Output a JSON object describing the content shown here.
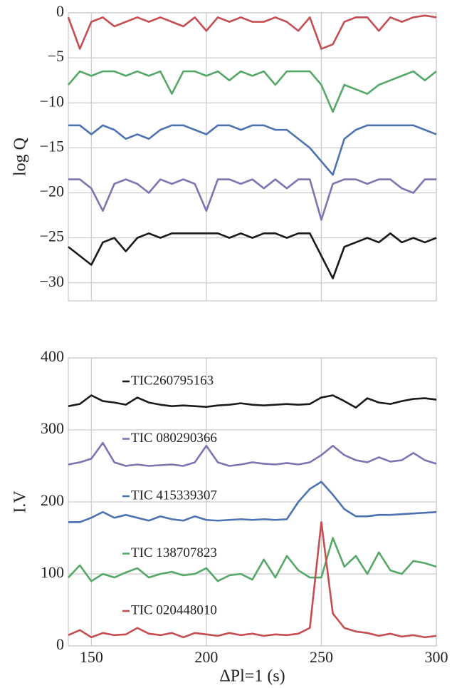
{
  "chart_data": [
    {
      "type": "line",
      "y_label": "log Q",
      "x": [
        140,
        145,
        150,
        155,
        160,
        165,
        170,
        175,
        180,
        185,
        190,
        195,
        200,
        205,
        210,
        215,
        220,
        225,
        230,
        235,
        240,
        245,
        250,
        255,
        260,
        265,
        270,
        275,
        280,
        285,
        290,
        295,
        300
      ],
      "xlim": [
        140,
        300
      ],
      "xticks": [
        150,
        200,
        250,
        300
      ],
      "ylim": [
        -32,
        0
      ],
      "yticks": [
        0,
        {
          "value": -5,
          "label": "−5"
        },
        {
          "value": -10,
          "label": "−10"
        },
        {
          "value": -15,
          "label": "−15"
        },
        {
          "value": -20,
          "label": "−20"
        },
        {
          "value": -25,
          "label": "−25"
        },
        {
          "value": -30,
          "label": "−30"
        }
      ],
      "grid": true,
      "series": [
        {
          "color": "#c44e52",
          "values": [
            -0.5,
            -4,
            -1,
            -0.5,
            -1.5,
            -1,
            -0.5,
            -1,
            -0.5,
            -1,
            -1.5,
            -0.5,
            -2,
            -0.5,
            -1,
            -0.5,
            -1,
            -1,
            -0.5,
            -1,
            -2,
            -0.5,
            -4,
            -3.5,
            -1,
            -0.5,
            -0.5,
            -2,
            -0.5,
            -1,
            -0.5,
            -0.3,
            -0.5
          ]
        },
        {
          "color": "#55a868",
          "values": [
            -8,
            -6.5,
            -7,
            -6.5,
            -6.5,
            -7,
            -6.5,
            -7,
            -6.5,
            -9,
            -6.5,
            -6.5,
            -7,
            -6.5,
            -7.5,
            -6.5,
            -7,
            -6.5,
            -8,
            -6.5,
            -6.5,
            -6.5,
            -8,
            -11,
            -8,
            -8.5,
            -9,
            -8,
            -7.5,
            -7,
            -6.5,
            -7.5,
            -6.5
          ]
        },
        {
          "color": "#4c72b0",
          "values": [
            -12.5,
            -12.5,
            -13.5,
            -12.5,
            -13,
            -14,
            -13.5,
            -14,
            -13,
            -12.5,
            -12.5,
            -13,
            -13.5,
            -12.5,
            -12.5,
            -13,
            -12.5,
            -12.5,
            -13,
            -13,
            -14,
            -15,
            -16.5,
            -18,
            -14,
            -13,
            -12.5,
            -12.5,
            -12.5,
            -12.5,
            -12.5,
            -13,
            -13.5
          ]
        },
        {
          "color": "#8172b2",
          "values": [
            -18.5,
            -18.5,
            -19.5,
            -22,
            -19,
            -18.5,
            -19,
            -20,
            -18.5,
            -19,
            -18.5,
            -19,
            -22,
            -18.5,
            -18.5,
            -19,
            -18.5,
            -19.5,
            -18.5,
            -19.5,
            -18.5,
            -18.5,
            -23,
            -19,
            -18.5,
            -18.5,
            -19,
            -18.5,
            -18.5,
            -19.5,
            -20,
            -18.5,
            -18.5
          ]
        },
        {
          "color": "#1a1a1a",
          "values": [
            -26,
            -27,
            -28,
            -25.5,
            -25,
            -26.5,
            -25,
            -24.5,
            -25,
            -24.5,
            -24.5,
            -24.5,
            -24.5,
            -24.5,
            -25,
            -24.5,
            -25,
            -24.5,
            -24.5,
            -25,
            -24.5,
            -24.5,
            -27,
            -29.5,
            -26,
            -25.5,
            -25,
            -25.5,
            -24.5,
            -25.5,
            -25,
            -25.5,
            -25
          ]
        }
      ]
    },
    {
      "type": "line",
      "y_label": "I.V",
      "x_label": "ΔPl=1 (s)",
      "x": [
        140,
        145,
        150,
        155,
        160,
        165,
        170,
        175,
        180,
        185,
        190,
        195,
        200,
        205,
        210,
        215,
        220,
        225,
        230,
        235,
        240,
        245,
        250,
        255,
        260,
        265,
        270,
        275,
        280,
        285,
        290,
        295,
        300
      ],
      "xlim": [
        140,
        300
      ],
      "xticks": [
        150,
        200,
        250,
        300
      ],
      "ylim": [
        0,
        400
      ],
      "yticks": [
        0,
        100,
        200,
        300,
        400
      ],
      "grid": true,
      "series": [
        {
          "name": "TIC260795163",
          "color": "#1a1a1a",
          "values": [
            333,
            336,
            348,
            340,
            338,
            335,
            345,
            338,
            335,
            333,
            334,
            333,
            332,
            334,
            335,
            337,
            335,
            334,
            335,
            336,
            335,
            336,
            345,
            348,
            340,
            331,
            344,
            338,
            336,
            340,
            343,
            344,
            342
          ]
        },
        {
          "name": "TIC 080290366",
          "color": "#8172b2",
          "values": [
            252,
            255,
            260,
            282,
            255,
            250,
            252,
            250,
            251,
            252,
            250,
            255,
            278,
            255,
            250,
            252,
            255,
            253,
            252,
            254,
            252,
            255,
            265,
            278,
            265,
            258,
            255,
            262,
            256,
            258,
            268,
            258,
            253
          ]
        },
        {
          "name": "TIC 415339307",
          "color": "#4c72b0",
          "values": [
            172,
            172,
            178,
            186,
            178,
            182,
            178,
            174,
            180,
            176,
            174,
            180,
            175,
            174,
            175,
            176,
            175,
            176,
            175,
            176,
            200,
            218,
            228,
            210,
            190,
            180,
            180,
            182,
            182,
            183,
            184,
            185,
            186
          ]
        },
        {
          "name": "TIC 138707823",
          "color": "#55a868",
          "values": [
            95,
            112,
            90,
            100,
            95,
            102,
            108,
            95,
            100,
            103,
            98,
            100,
            108,
            90,
            98,
            100,
            92,
            120,
            95,
            125,
            105,
            95,
            95,
            150,
            110,
            125,
            100,
            130,
            105,
            100,
            118,
            115,
            110
          ]
        },
        {
          "name": "TIC 020448010",
          "color": "#c44e52",
          "values": [
            15,
            22,
            12,
            18,
            15,
            16,
            25,
            17,
            15,
            18,
            12,
            18,
            16,
            14,
            18,
            15,
            17,
            14,
            16,
            15,
            17,
            25,
            172,
            45,
            25,
            20,
            18,
            14,
            17,
            13,
            15,
            12,
            14
          ]
        }
      ]
    }
  ]
}
